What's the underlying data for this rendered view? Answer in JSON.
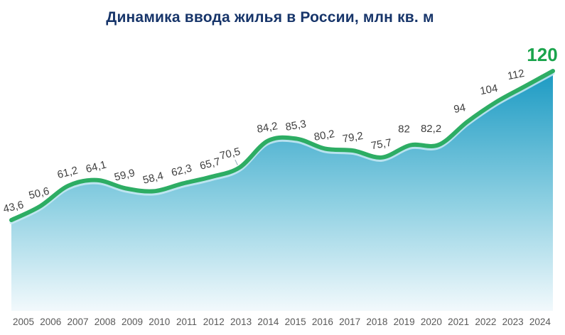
{
  "title": {
    "text": "Динамика ввода жилья в России, млн кв. м",
    "color": "#17356a"
  },
  "chart_data": {
    "type": "area",
    "title": "Динамика ввода жилья в России, млн кв. м",
    "categories": [
      "2005",
      "2006",
      "2007",
      "2008",
      "2009",
      "2010",
      "2011",
      "2012",
      "2013",
      "2014",
      "2015",
      "2016",
      "2017",
      "2018",
      "2019",
      "2020",
      "2021",
      "2022",
      "2023",
      "2024"
    ],
    "values": [
      43.6,
      50.6,
      61.2,
      64.1,
      59.9,
      58.4,
      62.3,
      65.7,
      70.5,
      84.2,
      85.3,
      80.2,
      79.2,
      75.7,
      82,
      82.2,
      94,
      104,
      112,
      120
    ],
    "value_labels": [
      "43,6",
      "50,6",
      "61,2",
      "64,1",
      "59,9",
      "58,4",
      "62,3",
      "65,7",
      "70,5",
      "84,2",
      "85,3",
      "80,2",
      "79,2",
      "75,7",
      "82",
      "82,2",
      "94",
      "104",
      "112",
      "120"
    ],
    "highlight_label": "120",
    "xlabel": "",
    "ylabel": "",
    "ylim": [
      0,
      130
    ],
    "grid": false,
    "legend": false,
    "colors": {
      "line": "#2dad64",
      "line_glow": "#c8e9f3",
      "area_top": "#1b9ac3",
      "area_mid": "#8ed0e2",
      "area_bottom": "#f2f9fc",
      "value_label": "#3f3f3f",
      "highlight": "#1aa44c",
      "year_tick": "#595959",
      "title": "#17356a"
    }
  }
}
